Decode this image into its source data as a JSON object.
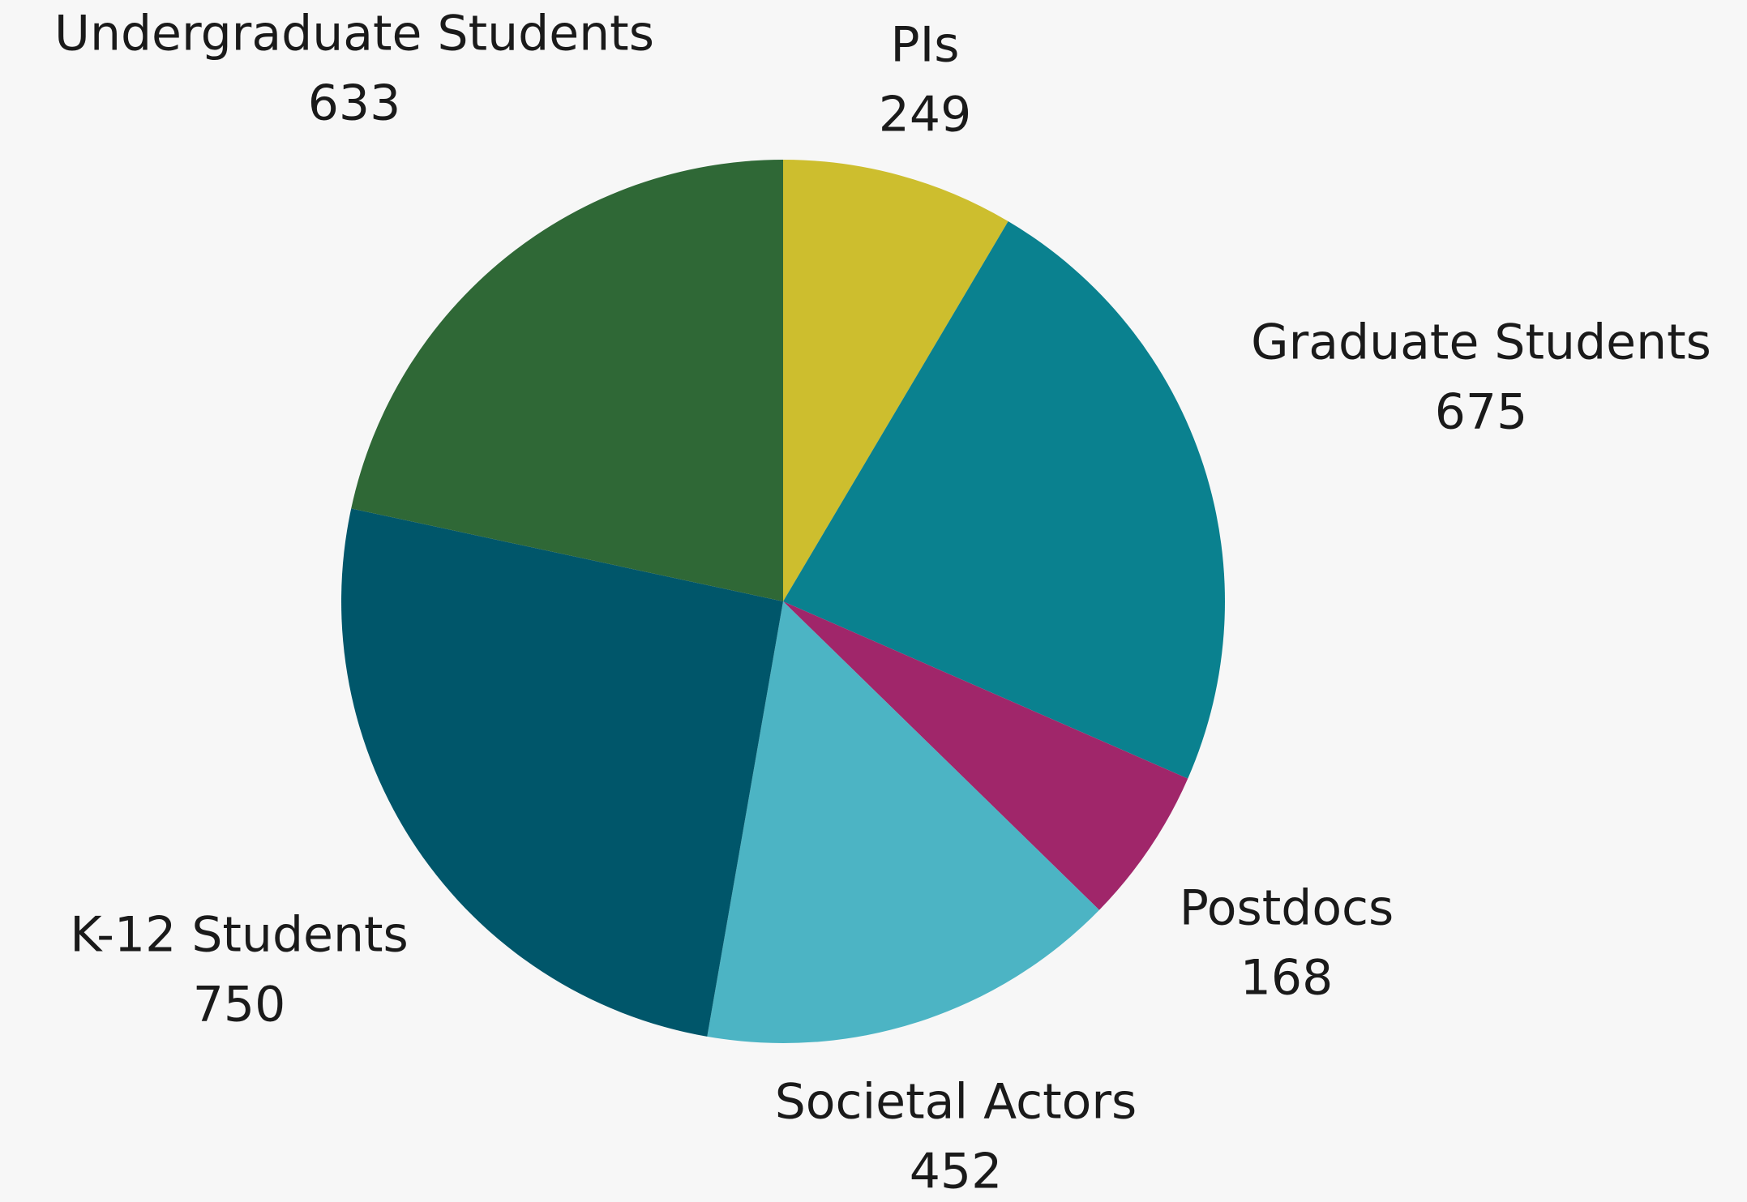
{
  "chart_data": {
    "type": "pie",
    "categories": [
      "PIs",
      "Graduate Students",
      "Postdocs",
      "Societal Actors",
      "K-12 Students",
      "Undergraduate Students"
    ],
    "values": [
      249,
      675,
      168,
      452,
      750,
      633
    ],
    "colors": [
      "#cdbe2e",
      "#0a818f",
      "#a0266a",
      "#4cb4c4",
      "#00566a",
      "#2f6836"
    ]
  }
}
